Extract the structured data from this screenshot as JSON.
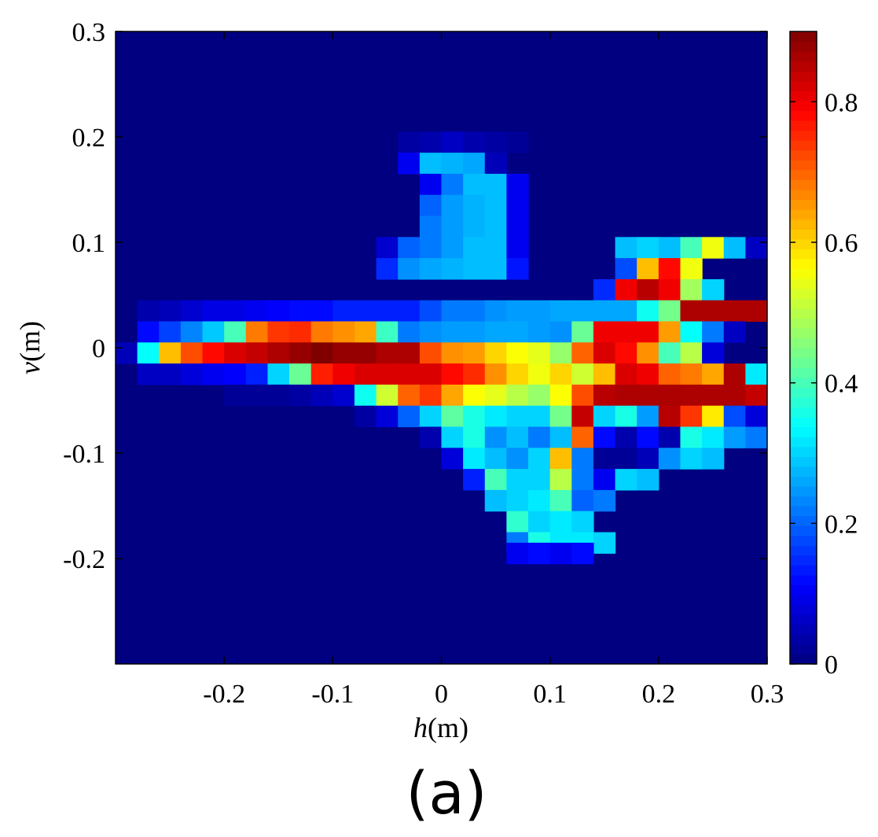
{
  "chart_data": {
    "type": "heatmap",
    "title": "",
    "xlabel": {
      "var": "h",
      "unit": "(m)"
    },
    "ylabel": {
      "var": "v",
      "unit": "(m)"
    },
    "xlim": [
      -0.3,
      0.3
    ],
    "ylim": [
      -0.3,
      0.3
    ],
    "x_ticks": [
      -0.2,
      -0.1,
      0,
      0.1,
      0.2,
      0.3
    ],
    "x_tick_labels": [
      "-0.2",
      "-0.1",
      "0",
      "0.1",
      "0.2",
      "0.3"
    ],
    "y_ticks": [
      0.3,
      0.2,
      0.1,
      0,
      -0.1,
      -0.2
    ],
    "y_tick_labels": [
      "0.3",
      "0.2",
      "0.1",
      "0",
      "-0.1",
      "-0.2"
    ],
    "colorbar": {
      "range": [
        0,
        0.9
      ],
      "colormap": "jet",
      "ticks": [
        0,
        0.2,
        0.4,
        0.6,
        0.8
      ],
      "tick_labels": [
        "0",
        "0.2",
        "0.4",
        "0.6",
        "0.8"
      ]
    },
    "grid": false,
    "cell_size": 0.02,
    "background_value": 0,
    "cells": [
      [
        -0.03,
        0.195,
        0.03,
        0.04,
        0.06,
        0.04,
        0.03,
        0.02
      ],
      [
        -0.03,
        0.175,
        0.1,
        0.28,
        0.27,
        0.26,
        0.05
      ],
      [
        -0.01,
        0.155,
        0.1,
        0.22,
        0.28,
        0.28,
        0.1
      ],
      [
        -0.01,
        0.135,
        0.2,
        0.25,
        0.27,
        0.28,
        0.1
      ],
      [
        -0.01,
        0.115,
        0.22,
        0.25,
        0.27,
        0.28,
        0.1
      ],
      [
        -0.05,
        0.095,
        0.07,
        0.2,
        0.22,
        0.25,
        0.28,
        0.28,
        0.1
      ],
      [
        -0.05,
        0.075,
        0.15,
        0.24,
        0.26,
        0.27,
        0.28,
        0.28,
        0.13
      ],
      [
        0.17,
        0.095,
        0.28,
        0.3,
        0.28,
        0.4,
        0.55,
        0.28,
        0.06,
        0.04
      ],
      [
        0.17,
        0.075,
        0.18,
        0.62,
        0.78,
        0.55
      ],
      [
        0.15,
        0.055,
        0.15,
        0.8,
        0.85,
        0.8,
        0.48,
        0.3
      ],
      [
        -0.27,
        0.035,
        0.04,
        0.05,
        0.07,
        0.09,
        0.09,
        0.1,
        0.11,
        0.12,
        0.12,
        0.14,
        0.14,
        0.14,
        0.14,
        0.18,
        0.22,
        0.22,
        0.24,
        0.25,
        0.25,
        0.26,
        0.26,
        0.26,
        0.26,
        0.35,
        0.44,
        0.86,
        0.86,
        0.86,
        0.86,
        0.64,
        0.24,
        0.22,
        0.05
      ],
      [
        -0.27,
        0.015,
        0.12,
        0.17,
        0.23,
        0.29,
        0.4,
        0.68,
        0.74,
        0.75,
        0.68,
        0.66,
        0.64,
        0.39,
        0.22,
        0.24,
        0.25,
        0.25,
        0.26,
        0.26,
        0.25,
        0.24,
        0.43,
        0.8,
        0.8,
        0.8,
        0.65,
        0.34,
        0.22,
        0.06
      ],
      [
        -0.29,
        -0.005,
        0.05,
        0.34,
        0.62,
        0.72,
        0.78,
        0.82,
        0.84,
        0.86,
        0.88,
        0.9,
        0.88,
        0.88,
        0.86,
        0.86,
        0.72,
        0.66,
        0.65,
        0.6,
        0.56,
        0.54,
        0.47,
        0.7,
        0.82,
        0.78,
        0.66,
        0.4,
        0.5,
        0.08
      ],
      [
        -0.27,
        -0.025,
        0.06,
        0.06,
        0.08,
        0.1,
        0.11,
        0.14,
        0.3,
        0.43,
        0.76,
        0.8,
        0.82,
        0.82,
        0.82,
        0.82,
        0.78,
        0.75,
        0.66,
        0.6,
        0.55,
        0.6,
        0.52,
        0.62,
        0.82,
        0.8,
        0.7,
        0.68,
        0.64,
        0.86,
        0.32
      ],
      [
        -0.19,
        -0.045,
        0.02,
        0.02,
        0.02,
        0.03,
        0.05,
        0.07,
        0.35,
        0.52,
        0.7,
        0.74,
        0.64,
        0.56,
        0.54,
        0.5,
        0.47,
        0.56,
        0.72,
        0.85,
        0.86,
        0.86,
        0.86,
        0.86,
        0.86,
        0.86,
        0.84,
        0.44
      ],
      [
        -0.07,
        -0.065,
        0.03,
        0.08,
        0.2,
        0.3,
        0.42,
        0.36,
        0.32,
        0.3,
        0.3,
        0.44,
        0.84,
        0.3,
        0.36,
        0.25,
        0.85,
        0.74,
        0.58,
        0.18,
        0.08
      ],
      [
        -0.01,
        -0.085,
        0.04,
        0.3,
        0.36,
        0.24,
        0.28,
        0.22,
        0.28,
        0.7,
        0.12,
        0.04,
        0.12,
        0.04,
        0.36,
        0.32,
        0.25,
        0.22,
        0.1
      ],
      [
        0.01,
        -0.105,
        0.08,
        0.32,
        0.28,
        0.24,
        0.3,
        0.62,
        0.22,
        0.02,
        0.02,
        0.05,
        0.24,
        0.3,
        0.28
      ],
      [
        0.03,
        -0.125,
        0.14,
        0.4,
        0.3,
        0.3,
        0.5,
        0.22,
        0.1,
        0.3,
        0.28
      ],
      [
        0.05,
        -0.145,
        0.28,
        0.3,
        0.32,
        0.4,
        0.2,
        0.22
      ],
      [
        0.07,
        -0.165,
        0.38,
        0.3,
        0.32,
        0.3
      ],
      [
        0.07,
        -0.185,
        0.22,
        0.36,
        0.32,
        0.32,
        0.3
      ],
      [
        0.07,
        -0.195,
        0.1,
        0.12,
        0.1,
        0.12
      ]
    ]
  },
  "panel_label": "(a)",
  "colors": {
    "background": "#ffffff",
    "axes": "#000000",
    "floor": "#00008F"
  }
}
